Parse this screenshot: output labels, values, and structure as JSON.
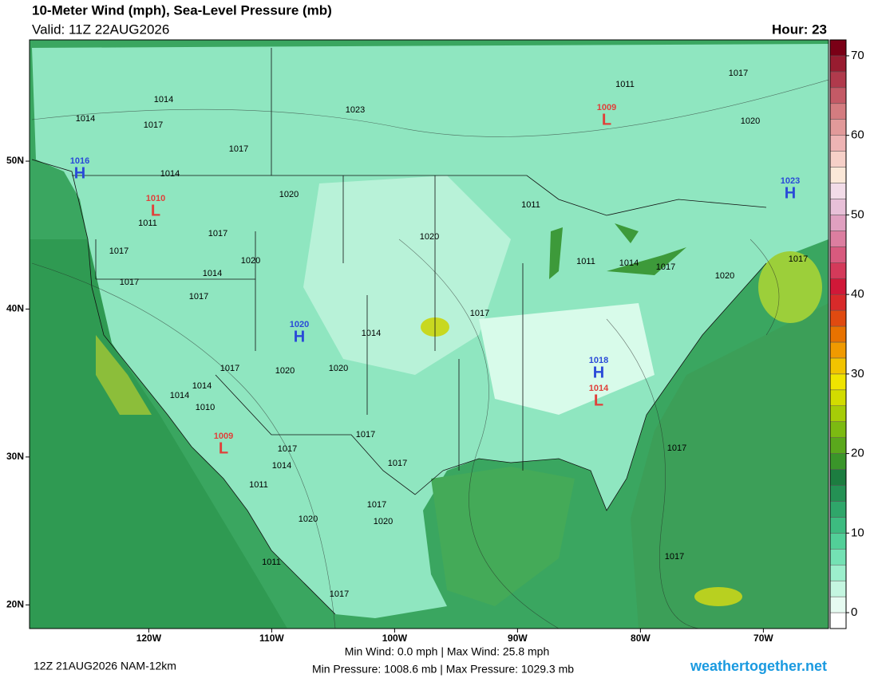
{
  "header": {
    "title": "10-Meter Wind (mph), Sea-Level Pressure (mb)",
    "valid": "Valid: 11Z 22AUG2026",
    "hour": "Hour: 23"
  },
  "map": {
    "lonlim": [
      -129.7,
      -64.7
    ],
    "latlim": [
      18.4,
      58.2
    ],
    "lon_ticks": [
      {
        "value": -120,
        "label": "120W"
      },
      {
        "value": -110,
        "label": "110W"
      },
      {
        "value": -100,
        "label": "100W"
      },
      {
        "value": -90,
        "label": "90W"
      },
      {
        "value": -80,
        "label": "80W"
      },
      {
        "value": -70,
        "label": "70W"
      }
    ],
    "lat_ticks": [
      {
        "value": 20,
        "label": "20N"
      },
      {
        "value": 30,
        "label": "30N"
      },
      {
        "value": 40,
        "label": "40N"
      },
      {
        "value": 50,
        "label": "50N"
      }
    ],
    "centers": [
      {
        "type": "H",
        "value": 1016,
        "color": "#2a4ad8"
      },
      {
        "type": "L",
        "value": 1010,
        "color": "#e0403a"
      },
      {
        "type": "L",
        "value": 1009,
        "color": "#e0403a"
      },
      {
        "type": "H",
        "value": 1023,
        "color": "#2a4ad8"
      },
      {
        "type": "H",
        "value": 1020,
        "color": "#2a4ad8"
      },
      {
        "type": "H",
        "value": 1018,
        "color": "#2a4ad8"
      },
      {
        "type": "L",
        "value": 1014,
        "color": "#e0403a"
      },
      {
        "type": "L",
        "value": 1009,
        "color": "#e0403a"
      }
    ],
    "isobar_labels": [
      1014,
      1014,
      1017,
      1017,
      1014,
      1023,
      1020,
      1011,
      1017,
      1017,
      1020,
      1014,
      1017,
      1017,
      1020,
      1011,
      1017,
      1020,
      1011,
      1011,
      1014,
      1017,
      1020,
      1017,
      1017,
      1014,
      1017,
      1020,
      1020,
      1014,
      1014,
      1010,
      1017,
      1017,
      1014,
      1017,
      1011,
      1017,
      1020,
      1020,
      1011,
      1017,
      1017,
      1017
    ]
  },
  "colorbar": {
    "lim": [
      -2,
      72
    ],
    "ticks": [
      0,
      10,
      20,
      30,
      40,
      50,
      60,
      70
    ],
    "levels": [
      -2,
      0,
      2,
      4,
      6,
      8,
      10,
      12,
      14,
      16,
      18,
      20,
      22,
      24,
      26,
      28,
      30,
      32,
      34,
      36,
      38,
      40,
      42,
      44,
      46,
      48,
      50,
      52,
      54,
      56,
      58,
      60,
      62,
      64,
      66,
      68,
      70,
      72
    ],
    "colors": [
      "#ffffff",
      "#e6fbf1",
      "#c4f6e0",
      "#9cefcc",
      "#74e2b4",
      "#52cf98",
      "#3dbb80",
      "#2fa66a",
      "#249154",
      "#1c7d40",
      "#3a952a",
      "#5aa81c",
      "#7cba12",
      "#a6cc08",
      "#d2dc00",
      "#f0e400",
      "#f2c400",
      "#f09a00",
      "#e87200",
      "#e04a10",
      "#d82a2a",
      "#d01838",
      "#d43a5a",
      "#d85a7e",
      "#dc7ea0",
      "#e0a0c0",
      "#e8c0d8",
      "#f2dce8",
      "#fbe8d8",
      "#f6d0c8",
      "#eeb4b4",
      "#e29a9a",
      "#d47c80",
      "#c45a66",
      "#b03a4c",
      "#981c30",
      "#7a0016"
    ]
  },
  "footer": {
    "run": "12Z 21AUG2026 NAM-12km",
    "wind": "Min Wind:   0.0 mph | Max Wind:  25.8 mph",
    "pressure": "Min Pressure: 1008.6 mb | Max Pressure: 1029.3 mb",
    "site": "weathertogether.net"
  }
}
